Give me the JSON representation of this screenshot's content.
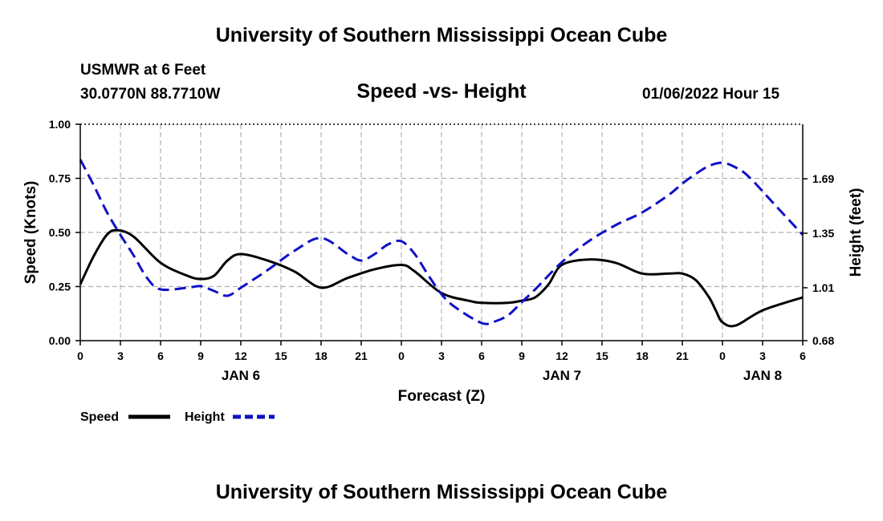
{
  "header": {
    "title": "University of Southern Mississippi Ocean Cube",
    "station": "USMWR at 6 Feet",
    "coords": "30.0770N  88.7710W",
    "subtitle": "Speed -vs- Height",
    "datetime": "01/06/2022 Hour 15"
  },
  "footer": {
    "title": "University of Southern Mississippi Ocean Cube"
  },
  "chart_data": {
    "type": "line",
    "title": "Speed -vs- Height",
    "xlabel": "Forecast (Z)",
    "ylabel": "Speed (Knots)",
    "y2label": "Height (feet)",
    "grid": true,
    "xlim": [
      0,
      54
    ],
    "ylim": [
      0,
      1.0
    ],
    "y2lim": [
      0.68,
      2.03
    ],
    "x_ticks": [
      0,
      3,
      6,
      9,
      12,
      15,
      18,
      21,
      24,
      27,
      30,
      33,
      36,
      39,
      42,
      45,
      48,
      51,
      54
    ],
    "x_tick_labels": [
      "0",
      "3",
      "6",
      "9",
      "12",
      "15",
      "18",
      "21",
      "0",
      "3",
      "6",
      "9",
      "12",
      "15",
      "18",
      "21",
      "0",
      "3",
      "6"
    ],
    "y_ticks": [
      0,
      0.25,
      0.5,
      0.75,
      1.0
    ],
    "y_tick_labels": [
      "0.00",
      "0.25",
      "0.50",
      "0.75",
      "1.00"
    ],
    "y2_ticks": [
      0.68,
      1.01,
      1.35,
      1.69
    ],
    "y2_tick_labels": [
      "0.68",
      "1.01",
      "1.35",
      "1.69"
    ],
    "day_labels": [
      {
        "x": 12,
        "label": "JAN 6"
      },
      {
        "x": 36,
        "label": "JAN 7"
      },
      {
        "x": 51,
        "label": "JAN 8"
      }
    ],
    "series": [
      {
        "name": "Speed",
        "color": "#000000",
        "dash": "solid",
        "axis": "left",
        "x": [
          0,
          1,
          2,
          2.8,
          4,
          6,
          8,
          9,
          10,
          11,
          12,
          14,
          16,
          18,
          20,
          22,
          24,
          25,
          27,
          29,
          30,
          32,
          33,
          34,
          35,
          36,
          38,
          40,
          42,
          44,
          45,
          46,
          47,
          47.5,
          48,
          49,
          51,
          54
        ],
        "values": [
          0.26,
          0.39,
          0.49,
          0.51,
          0.48,
          0.36,
          0.3,
          0.285,
          0.3,
          0.37,
          0.4,
          0.37,
          0.32,
          0.245,
          0.29,
          0.33,
          0.35,
          0.32,
          0.22,
          0.185,
          0.175,
          0.175,
          0.185,
          0.2,
          0.26,
          0.35,
          0.375,
          0.36,
          0.31,
          0.31,
          0.31,
          0.28,
          0.2,
          0.14,
          0.085,
          0.07,
          0.14,
          0.2
        ]
      },
      {
        "name": "Height",
        "color": "#1010c8",
        "dash": "dashed",
        "axis": "right",
        "x": [
          0,
          1,
          2,
          3,
          4,
          5,
          6,
          8,
          9,
          10,
          11,
          12,
          14,
          16,
          18,
          20,
          21,
          22,
          23,
          24,
          25,
          26,
          27,
          28,
          30,
          31,
          32,
          33,
          34,
          36,
          38,
          40,
          42,
          44,
          45,
          46,
          47,
          48,
          49,
          50,
          52,
          54
        ],
        "values": [
          1.81,
          1.65,
          1.48,
          1.34,
          1.21,
          1.07,
          1.0,
          1.01,
          1.02,
          0.99,
          0.96,
          1.01,
          1.12,
          1.24,
          1.32,
          1.22,
          1.18,
          1.22,
          1.28,
          1.3,
          1.22,
          1.09,
          0.97,
          0.89,
          0.79,
          0.8,
          0.84,
          0.92,
          1.0,
          1.17,
          1.3,
          1.4,
          1.48,
          1.59,
          1.66,
          1.72,
          1.77,
          1.79,
          1.76,
          1.7,
          1.52,
          1.34
        ]
      }
    ],
    "legend": {
      "position": "bottom-left",
      "entries": [
        {
          "label": "Speed",
          "color": "#000000",
          "dash": "solid"
        },
        {
          "label": "Height",
          "color": "#1010c8",
          "dash": "dashed"
        }
      ]
    }
  }
}
